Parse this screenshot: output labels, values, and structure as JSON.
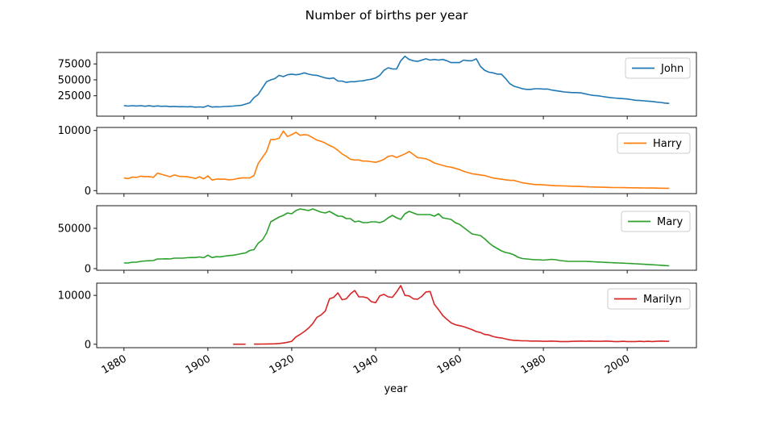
{
  "title": "Number of births per year",
  "xlabel": "year",
  "x_ticks": [
    1880,
    1900,
    1920,
    1940,
    1960,
    1980,
    2000
  ],
  "colors": {
    "John": "#1f77b4",
    "Harry": "#ff7f0e",
    "Mary": "#2ca02c",
    "Marilyn": "#d62728"
  },
  "chart_data": {
    "type": "line",
    "title": "Number of births per year",
    "xlabel": "year",
    "xlim": [
      1873.5,
      2016.5
    ],
    "grid": false,
    "legend_placement": "top-right",
    "panels": [
      {
        "name": "John",
        "ylim": [
          -7000,
          93000
        ],
        "yticks": [
          25000,
          50000,
          75000
        ],
        "ytick_labels": [
          "25000",
          "50000",
          "75000"
        ],
        "x": [
          1880,
          1881,
          1882,
          1883,
          1884,
          1885,
          1886,
          1887,
          1888,
          1889,
          1890,
          1891,
          1892,
          1893,
          1894,
          1895,
          1896,
          1897,
          1898,
          1899,
          1900,
          1901,
          1902,
          1903,
          1904,
          1905,
          1906,
          1907,
          1908,
          1909,
          1910,
          1911,
          1912,
          1913,
          1914,
          1915,
          1916,
          1917,
          1918,
          1919,
          1920,
          1921,
          1922,
          1923,
          1924,
          1925,
          1926,
          1927,
          1928,
          1929,
          1930,
          1931,
          1932,
          1933,
          1934,
          1935,
          1936,
          1937,
          1938,
          1939,
          1940,
          1941,
          1942,
          1943,
          1944,
          1945,
          1946,
          1947,
          1948,
          1949,
          1950,
          1951,
          1952,
          1953,
          1954,
          1955,
          1956,
          1957,
          1958,
          1959,
          1960,
          1961,
          1962,
          1963,
          1964,
          1965,
          1966,
          1967,
          1968,
          1969,
          1970,
          1971,
          1972,
          1973,
          1974,
          1975,
          1976,
          1977,
          1978,
          1979,
          1980,
          1981,
          1982,
          1983,
          1984,
          1985,
          1986,
          1987,
          1988,
          1989,
          1990,
          1991,
          1992,
          1993,
          1994,
          1995,
          1996,
          1997,
          1998,
          1999,
          2000,
          2001,
          2002,
          2003,
          2004,
          2005,
          2006,
          2007,
          2008,
          2009,
          2010
        ],
        "values": [
          9600,
          8800,
          9500,
          8900,
          9400,
          8600,
          9300,
          8500,
          9100,
          8400,
          8700,
          7900,
          8300,
          7800,
          8000,
          7700,
          7900,
          7200,
          7500,
          7000,
          9500,
          7300,
          7800,
          7600,
          8200,
          8500,
          8800,
          9500,
          10000,
          12000,
          14000,
          22000,
          27000,
          37000,
          47000,
          50000,
          52000,
          57000,
          55000,
          58000,
          59000,
          58000,
          59000,
          61000,
          59000,
          57500,
          57000,
          55000,
          53000,
          52000,
          53000,
          48000,
          48000,
          46000,
          47000,
          47000,
          48000,
          48500,
          50000,
          51000,
          53000,
          57000,
          65000,
          69000,
          67000,
          67000,
          80000,
          87000,
          82000,
          80000,
          79000,
          81000,
          83000,
          81000,
          82000,
          81000,
          82000,
          80000,
          77000,
          77000,
          77000,
          81000,
          80000,
          80000,
          83000,
          71000,
          65000,
          62000,
          61000,
          59000,
          59000,
          52000,
          44000,
          40000,
          38000,
          36000,
          35000,
          35000,
          36000,
          36000,
          35500,
          35500,
          34000,
          33000,
          32000,
          31000,
          30500,
          30000,
          30000,
          29500,
          28000,
          26500,
          25500,
          25000,
          24000,
          23000,
          22000,
          21500,
          21000,
          20500,
          20000,
          19000,
          18000,
          17500,
          17000,
          16500,
          16000,
          15000,
          14500,
          13500,
          13000
        ],
        "gaps": []
      },
      {
        "name": "Harry",
        "ylim": [
          -500,
          10500
        ],
        "yticks": [
          0,
          10000
        ],
        "ytick_labels": [
          "0",
          "10000"
        ],
        "x": [
          1880,
          1881,
          1882,
          1883,
          1884,
          1885,
          1886,
          1887,
          1888,
          1889,
          1890,
          1891,
          1892,
          1893,
          1894,
          1895,
          1896,
          1897,
          1898,
          1899,
          1900,
          1901,
          1902,
          1903,
          1904,
          1905,
          1906,
          1907,
          1908,
          1909,
          1910,
          1911,
          1912,
          1913,
          1914,
          1915,
          1916,
          1917,
          1918,
          1919,
          1920,
          1921,
          1922,
          1923,
          1924,
          1925,
          1926,
          1927,
          1928,
          1929,
          1930,
          1931,
          1932,
          1933,
          1934,
          1935,
          1936,
          1937,
          1938,
          1939,
          1940,
          1941,
          1942,
          1943,
          1944,
          1945,
          1946,
          1947,
          1948,
          1949,
          1950,
          1951,
          1952,
          1953,
          1954,
          1955,
          1956,
          1957,
          1958,
          1959,
          1960,
          1961,
          1962,
          1963,
          1964,
          1965,
          1966,
          1967,
          1968,
          1969,
          1970,
          1971,
          1972,
          1973,
          1974,
          1975,
          1976,
          1977,
          1978,
          1979,
          1980,
          1981,
          1982,
          1983,
          1984,
          1985,
          1986,
          1987,
          1988,
          1989,
          1990,
          1991,
          1992,
          1993,
          1994,
          1995,
          1996,
          1997,
          1998,
          1999,
          2000,
          2001,
          2002,
          2003,
          2004,
          2005,
          2006,
          2007,
          2008,
          2009,
          2010
        ],
        "values": [
          2100,
          2000,
          2250,
          2200,
          2400,
          2300,
          2350,
          2200,
          2900,
          2700,
          2500,
          2300,
          2600,
          2400,
          2350,
          2300,
          2200,
          2000,
          2300,
          1950,
          2450,
          1750,
          1900,
          1900,
          1900,
          1800,
          1850,
          2000,
          2100,
          2100,
          2100,
          2500,
          4500,
          5500,
          6500,
          8500,
          8500,
          8700,
          9900,
          9000,
          9300,
          9700,
          9200,
          9300,
          9200,
          8800,
          8400,
          8200,
          7900,
          7500,
          7200,
          6700,
          6100,
          5700,
          5200,
          5100,
          5100,
          4900,
          4900,
          4800,
          4700,
          4900,
          5200,
          5700,
          5800,
          5500,
          5800,
          6100,
          6500,
          6000,
          5500,
          5400,
          5300,
          5000,
          4600,
          4400,
          4200,
          4000,
          3900,
          3700,
          3500,
          3200,
          3000,
          2800,
          2700,
          2600,
          2500,
          2300,
          2100,
          2000,
          1900,
          1800,
          1700,
          1700,
          1500,
          1300,
          1200,
          1100,
          1000,
          1000,
          950,
          900,
          850,
          800,
          800,
          780,
          750,
          720,
          700,
          680,
          650,
          620,
          600,
          580,
          560,
          540,
          520,
          510,
          500,
          490,
          480,
          470,
          460,
          450,
          440,
          430,
          420,
          410,
          400,
          390,
          380
        ],
        "gaps": []
      },
      {
        "name": "Mary",
        "ylim": [
          -2000,
          78000
        ],
        "yticks": [
          0,
          50000
        ],
        "ytick_labels": [
          "0",
          "50000"
        ],
        "x": [
          1880,
          1881,
          1882,
          1883,
          1884,
          1885,
          1886,
          1887,
          1888,
          1889,
          1890,
          1891,
          1892,
          1893,
          1894,
          1895,
          1896,
          1897,
          1898,
          1899,
          1900,
          1901,
          1902,
          1903,
          1904,
          1905,
          1906,
          1907,
          1908,
          1909,
          1910,
          1911,
          1912,
          1913,
          1914,
          1915,
          1916,
          1917,
          1918,
          1919,
          1920,
          1921,
          1922,
          1923,
          1924,
          1925,
          1926,
          1927,
          1928,
          1929,
          1930,
          1931,
          1932,
          1933,
          1934,
          1935,
          1936,
          1937,
          1938,
          1939,
          1940,
          1941,
          1942,
          1943,
          1944,
          1945,
          1946,
          1947,
          1948,
          1949,
          1950,
          1951,
          1952,
          1953,
          1954,
          1955,
          1956,
          1957,
          1958,
          1959,
          1960,
          1961,
          1962,
          1963,
          1964,
          1965,
          1966,
          1967,
          1968,
          1969,
          1970,
          1971,
          1972,
          1973,
          1974,
          1975,
          1976,
          1977,
          1978,
          1979,
          1980,
          1981,
          1982,
          1983,
          1984,
          1985,
          1986,
          1987,
          1988,
          1989,
          1990,
          1991,
          1992,
          1993,
          1994,
          1995,
          1996,
          1997,
          1998,
          1999,
          2000,
          2001,
          2002,
          2003,
          2004,
          2005,
          2006,
          2007,
          2008,
          2009,
          2010
        ],
        "values": [
          7000,
          7000,
          8000,
          8000,
          9000,
          9500,
          9800,
          10000,
          12000,
          12000,
          12200,
          12000,
          13000,
          13000,
          13000,
          13500,
          13800,
          13700,
          14500,
          13500,
          16700,
          13700,
          14800,
          14600,
          15500,
          16200,
          16600,
          17500,
          18600,
          19500,
          22500,
          23500,
          31500,
          35500,
          44000,
          58000,
          61000,
          64000,
          66000,
          69000,
          68000,
          72000,
          74000,
          73000,
          72000,
          74000,
          72000,
          70000,
          69000,
          71000,
          68000,
          65000,
          65000,
          62000,
          62000,
          58000,
          59000,
          57000,
          57000,
          58000,
          58000,
          57000,
          59000,
          63000,
          66000,
          63000,
          61000,
          68000,
          71000,
          69000,
          67000,
          67000,
          67000,
          67000,
          65000,
          68000,
          63000,
          62000,
          61000,
          57000,
          55000,
          51000,
          47000,
          43000,
          42000,
          41000,
          37000,
          32000,
          28000,
          25000,
          22000,
          20000,
          19000,
          17000,
          14000,
          12500,
          12000,
          11500,
          11000,
          11000,
          10500,
          11000,
          11500,
          11000,
          10000,
          9500,
          9000,
          9000,
          9000,
          9000,
          9000,
          8800,
          8500,
          8200,
          8000,
          7700,
          7500,
          7200,
          7000,
          6800,
          6500,
          6300,
          6000,
          5700,
          5400,
          5100,
          4800,
          4500,
          4200,
          3800,
          3500
        ],
        "gaps": []
      },
      {
        "name": "Marilyn",
        "ylim": [
          -700,
          12500
        ],
        "yticks": [
          0,
          10000
        ],
        "ytick_labels": [
          "0",
          "10000"
        ],
        "x": [
          1906,
          1907,
          1908,
          1909,
          1911,
          1912,
          1913,
          1914,
          1915,
          1916,
          1917,
          1918,
          1919,
          1920,
          1921,
          1922,
          1923,
          1924,
          1925,
          1926,
          1927,
          1928,
          1929,
          1930,
          1931,
          1932,
          1933,
          1934,
          1935,
          1936,
          1937,
          1938,
          1939,
          1940,
          1941,
          1942,
          1943,
          1944,
          1945,
          1946,
          1947,
          1948,
          1949,
          1950,
          1951,
          1952,
          1953,
          1954,
          1955,
          1956,
          1957,
          1958,
          1959,
          1960,
          1961,
          1962,
          1963,
          1964,
          1965,
          1966,
          1967,
          1968,
          1969,
          1970,
          1971,
          1972,
          1973,
          1974,
          1975,
          1976,
          1977,
          1978,
          1979,
          1980,
          1981,
          1982,
          1983,
          1984,
          1985,
          1986,
          1987,
          1988,
          1989,
          1990,
          1991,
          1992,
          1993,
          1994,
          1995,
          1996,
          1997,
          1998,
          1999,
          2000,
          2001,
          2002,
          2003,
          2004,
          2005,
          2006,
          2007,
          2008,
          2009,
          2010
        ],
        "values": [
          10,
          10,
          10,
          10,
          20,
          30,
          40,
          60,
          80,
          100,
          150,
          250,
          400,
          600,
          1500,
          2000,
          2600,
          3300,
          4200,
          5500,
          6000,
          6800,
          9300,
          9600,
          10500,
          9100,
          9300,
          10300,
          11000,
          9700,
          9700,
          9500,
          8700,
          8500,
          9900,
          10200,
          9700,
          9600,
          10700,
          12000,
          10000,
          9900,
          9300,
          9200,
          9800,
          10700,
          10800,
          8200,
          7100,
          5900,
          5100,
          4400,
          4000,
          3800,
          3600,
          3300,
          3000,
          2600,
          2400,
          2000,
          1900,
          1600,
          1400,
          1300,
          1100,
          900,
          800,
          750,
          700,
          700,
          650,
          650,
          650,
          600,
          600,
          650,
          600,
          550,
          550,
          550,
          600,
          600,
          650,
          600,
          650,
          600,
          600,
          600,
          650,
          600,
          550,
          550,
          600,
          550,
          550,
          550,
          600,
          550,
          600,
          550,
          600,
          650,
          600,
          600
        ],
        "gaps": [
          1910
        ]
      }
    ]
  }
}
